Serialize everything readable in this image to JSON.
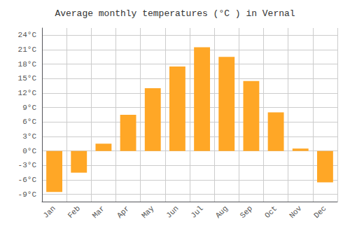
{
  "chart_data": {
    "type": "bar",
    "title": "Average monthly temperatures (°C ) in Vernal",
    "categories": [
      "Jan",
      "Feb",
      "Mar",
      "Apr",
      "May",
      "Jun",
      "Jul",
      "Aug",
      "Sep",
      "Oct",
      "Nov",
      "Dec"
    ],
    "values": [
      -8.5,
      -4.5,
      1.5,
      7.5,
      13.0,
      17.5,
      21.5,
      19.5,
      14.5,
      8.0,
      0.5,
      -6.5
    ],
    "color": "#FFA726",
    "ylim": [
      -10.5,
      25.5
    ],
    "yticks": [
      {
        "value": -9,
        "label": "-9°C"
      },
      {
        "value": -6,
        "label": "-6°C"
      },
      {
        "value": -3,
        "label": "-3°C"
      },
      {
        "value": 0,
        "label": "0°C"
      },
      {
        "value": 3,
        "label": "3°C"
      },
      {
        "value": 6,
        "label": "6°C"
      },
      {
        "value": 9,
        "label": "9°C"
      },
      {
        "value": 12,
        "label": "12°C"
      },
      {
        "value": 15,
        "label": "15°C"
      },
      {
        "value": 18,
        "label": "18°C"
      },
      {
        "value": 21,
        "label": "21°C"
      },
      {
        "value": 24,
        "label": "24°C"
      }
    ],
    "grid": true
  }
}
